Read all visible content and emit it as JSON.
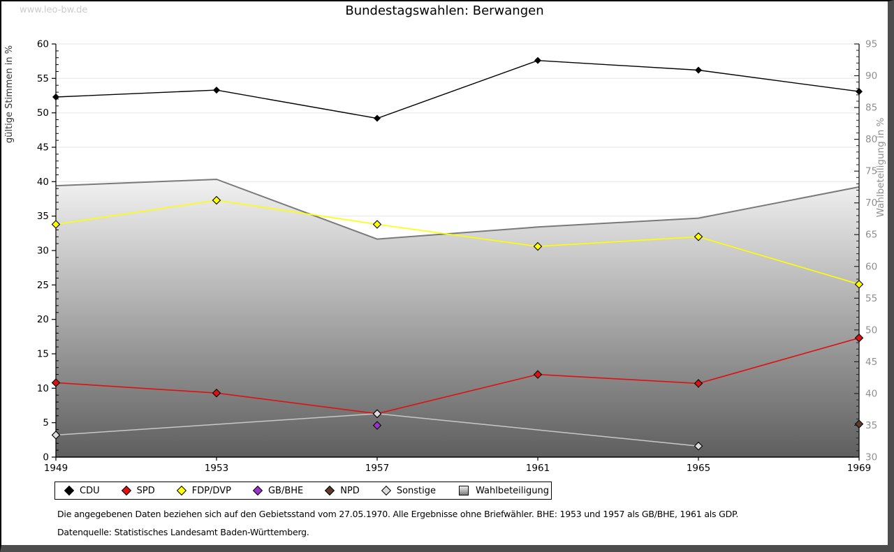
{
  "watermark": "www.leo-bw.de",
  "title": "Bundestagswahlen: Berwangen",
  "footer": {
    "line1": "Die angegebenen Daten beziehen sich auf den Gebietsstand vom 27.05.1970. Alle Ergebnisse ohne Briefwähler. BHE: 1953 und 1957 als GB/BHE, 1961 als GDP.",
    "line2": "Datenquelle: Statistisches Landesamt Baden-Württemberg."
  },
  "chart_data": {
    "type": "line",
    "title": "Bundestagswahlen: Berwangen",
    "x_categories": [
      "1949",
      "1953",
      "1957",
      "1961",
      "1965",
      "1969"
    ],
    "left_axis": {
      "label": "gültige Stimmen in %",
      "min": 0,
      "max": 60,
      "tick_step": 5,
      "minor_step": 1,
      "label_color": "#333333",
      "tick_label_color": "#000000"
    },
    "right_axis": {
      "label": "Wahlbeteiligung in %",
      "min": 30,
      "max": 95,
      "tick_step": 5,
      "minor_step": 1,
      "label_color": "#8f8f8f",
      "tick_label_color": "#8f8f8f"
    },
    "grid": true,
    "grid_color": "#e5e5e5",
    "legend_position": "bottom",
    "series": [
      {
        "name": "CDU",
        "color": "#000000",
        "axis": "left",
        "marker": "diamond",
        "values": [
          52.3,
          53.3,
          49.2,
          57.6,
          56.2,
          53.1
        ]
      },
      {
        "name": "SPD",
        "color": "#dd1111",
        "axis": "left",
        "marker": "diamond",
        "values": [
          10.8,
          9.3,
          6.3,
          12.0,
          10.7,
          17.3
        ]
      },
      {
        "name": "FDP/DVP",
        "color": "#ffff00",
        "axis": "left",
        "marker": "diamond",
        "values": [
          33.8,
          37.3,
          33.8,
          30.6,
          32.0,
          25.1
        ]
      },
      {
        "name": "GB/BHE",
        "color": "#9933cc",
        "axis": "left",
        "marker": "diamond",
        "values": [
          null,
          null,
          4.6,
          null,
          null,
          null
        ]
      },
      {
        "name": "NPD",
        "color": "#5e3a2a",
        "axis": "left",
        "marker": "diamond",
        "values": [
          null,
          null,
          null,
          null,
          null,
          4.8
        ]
      },
      {
        "name": "Sonstige",
        "color": "#c8c8c8",
        "marker_color": "#dcdcdc",
        "axis": "left",
        "marker": "diamond",
        "values": [
          3.2,
          null,
          6.3,
          null,
          1.6,
          null
        ]
      }
    ],
    "area_series": {
      "name": "Wahlbeteiligung",
      "axis": "right",
      "marker": "square",
      "values": [
        72.7,
        73.7,
        64.3,
        66.2,
        67.6,
        72.5
      ],
      "edge_color": "#7a7a7a",
      "fill_top": "#f2f2f2",
      "fill_bottom": "#5e5e5e"
    }
  }
}
